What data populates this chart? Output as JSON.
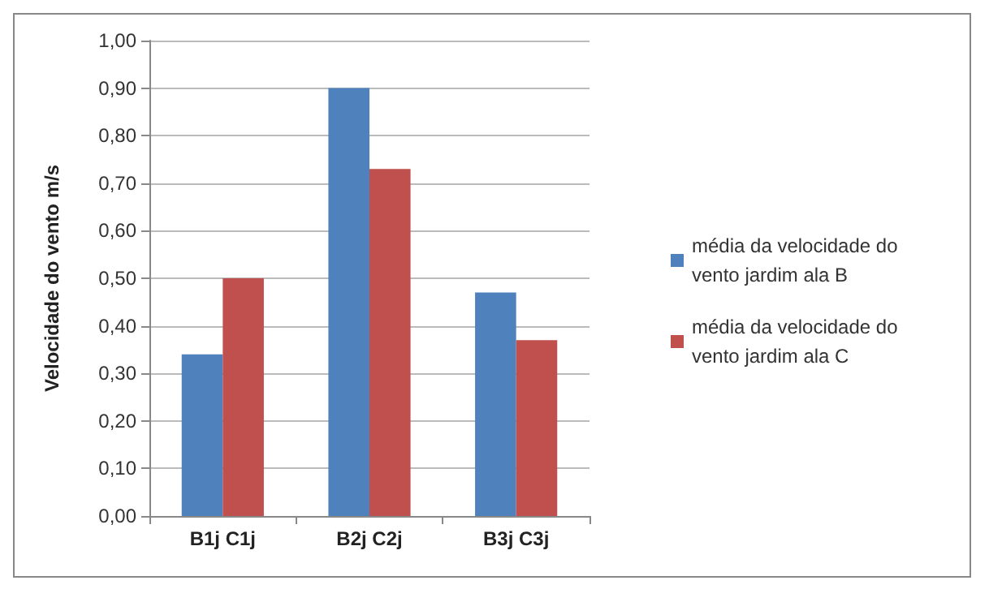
{
  "chart_data": {
    "type": "bar",
    "ylabel": "Velocidade do vento m/s",
    "categories": [
      "B1j C1j",
      "B2j C2j",
      "B3j C3j"
    ],
    "series": [
      {
        "name": "média da velocidade do vento jardim ala B",
        "color": "#4f81bd",
        "values": [
          0.34,
          0.9,
          0.47
        ]
      },
      {
        "name": "média da velocidade do vento jardim ala C",
        "color": "#c0504d",
        "values": [
          0.5,
          0.73,
          0.37
        ]
      }
    ],
    "ylim": [
      0,
      1
    ],
    "yticks": [
      {
        "value": 0,
        "label": "0,00"
      },
      {
        "value": 0.1,
        "label": "0,10"
      },
      {
        "value": 0.2,
        "label": "0,20"
      },
      {
        "value": 0.3,
        "label": "0,30"
      },
      {
        "value": 0.4,
        "label": "0,40"
      },
      {
        "value": 0.5,
        "label": "0,50"
      },
      {
        "value": 0.6,
        "label": "0,60"
      },
      {
        "value": 0.7,
        "label": "0,70"
      },
      {
        "value": 0.8,
        "label": "0,80"
      },
      {
        "value": 0.9,
        "label": "0,90"
      },
      {
        "value": 1,
        "label": "1,00"
      }
    ],
    "grid": "y",
    "legend": "right"
  }
}
